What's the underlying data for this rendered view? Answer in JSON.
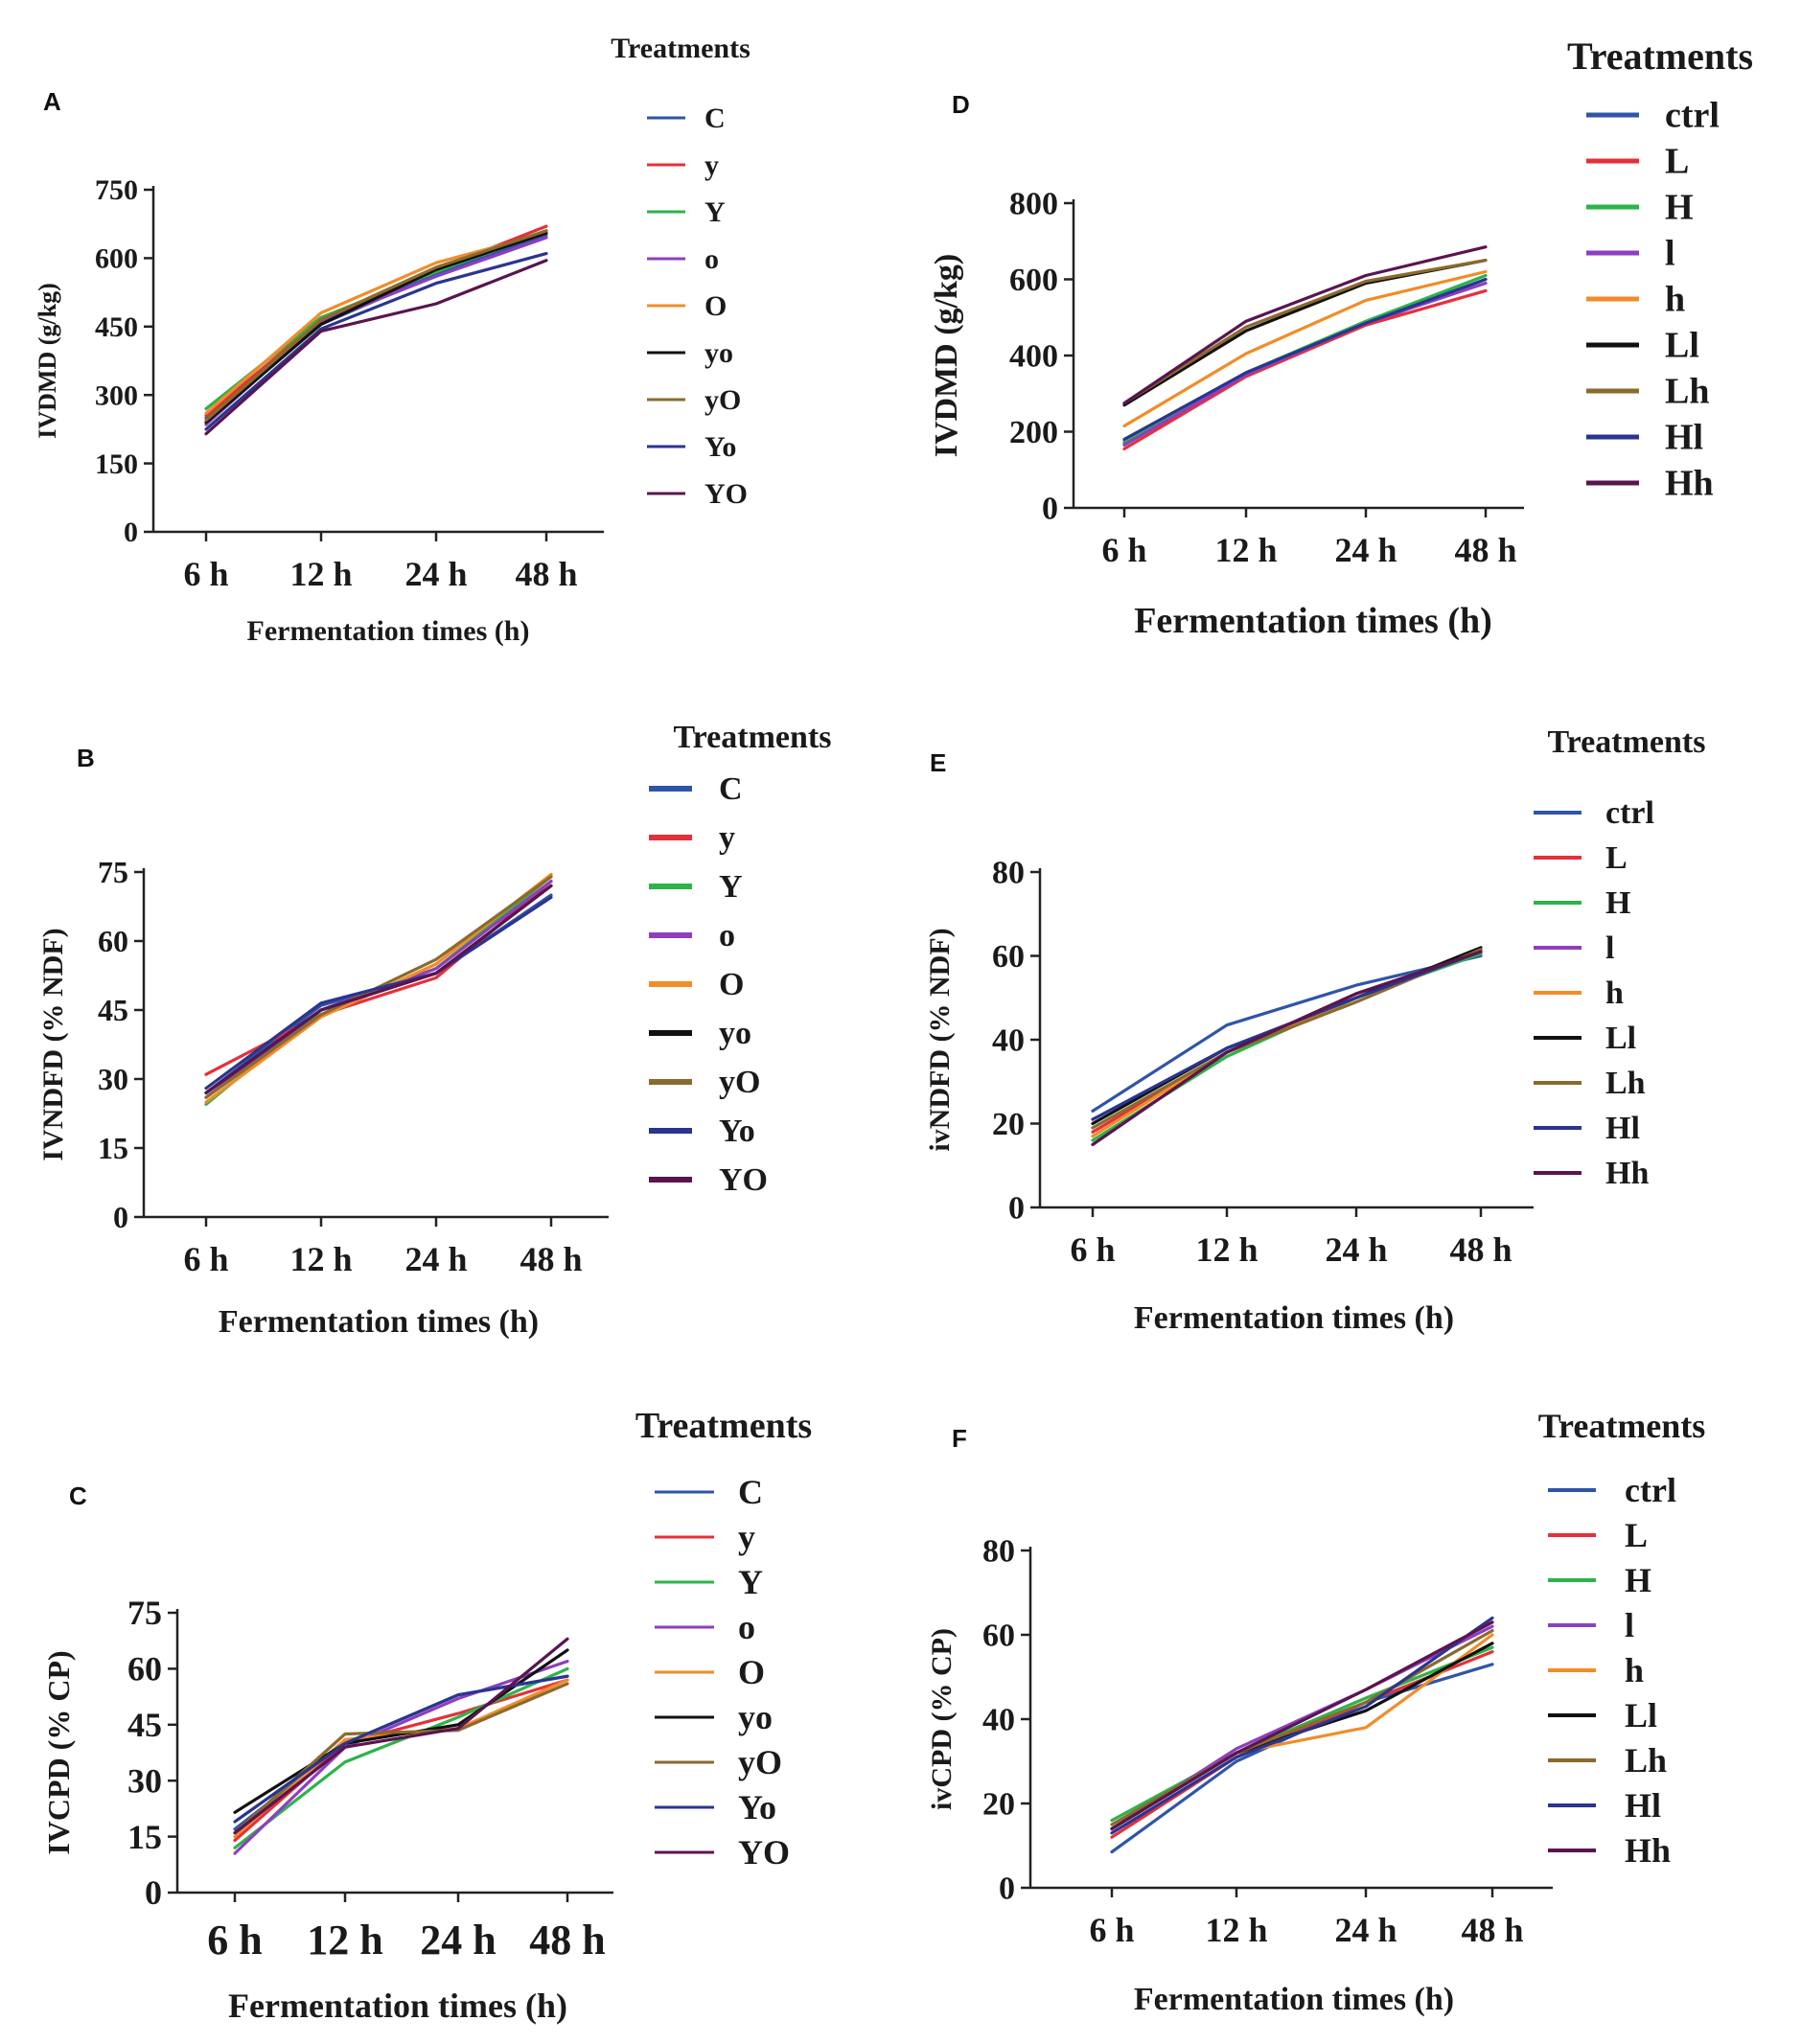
{
  "figure": {
    "colors": [
      "#2f55a8",
      "#e5303a",
      "#2db34a",
      "#8e3fbf",
      "#f28c28",
      "#111111",
      "#8a6a2e",
      "#2a3590",
      "#5a1450"
    ]
  },
  "chart_data": [
    {
      "id": "A",
      "panel_label": "A",
      "type": "line",
      "categories": [
        "6 h",
        "12 h",
        "24 h",
        "48 h"
      ],
      "ylabel": "IVDMD (g/kg)",
      "xlabel": "Fermentation times (h)",
      "ylim": [
        0,
        750
      ],
      "yticks": [
        "0",
        "150",
        "300",
        "450",
        "600",
        "750"
      ],
      "legend_title": "Treatments",
      "series": [
        {
          "name": "C",
          "values": [
            250,
            455,
            565,
            650
          ]
        },
        {
          "name": "y",
          "values": [
            255,
            465,
            575,
            670
          ]
        },
        {
          "name": "Y",
          "values": [
            270,
            470,
            570,
            660
          ]
        },
        {
          "name": "o",
          "values": [
            235,
            460,
            560,
            645
          ]
        },
        {
          "name": "O",
          "values": [
            260,
            480,
            590,
            655
          ]
        },
        {
          "name": "yo",
          "values": [
            240,
            455,
            575,
            655
          ]
        },
        {
          "name": "yO",
          "values": [
            245,
            465,
            580,
            660
          ]
        },
        {
          "name": "Yo",
          "values": [
            225,
            445,
            545,
            610
          ]
        },
        {
          "name": "YO",
          "values": [
            215,
            440,
            500,
            595
          ]
        }
      ]
    },
    {
      "id": "B",
      "panel_label": "B",
      "type": "line",
      "categories": [
        "6 h",
        "12 h",
        "24 h",
        "48 h"
      ],
      "ylabel": "IVNDFD (% NDF)",
      "xlabel": "Fermentation times (h)",
      "ylim": [
        0,
        75
      ],
      "yticks": [
        "0",
        "15",
        "30",
        "45",
        "60",
        "75"
      ],
      "legend_title": "Treatments",
      "series": [
        {
          "name": "C",
          "values": [
            27,
            46,
            53,
            70
          ]
        },
        {
          "name": "y",
          "values": [
            31,
            44,
            52,
            73
          ]
        },
        {
          "name": "Y",
          "values": [
            24.5,
            45,
            54,
            74
          ]
        },
        {
          "name": "o",
          "values": [
            26,
            45,
            54,
            73
          ]
        },
        {
          "name": "O",
          "values": [
            25,
            43.5,
            55,
            74.5
          ]
        },
        {
          "name": "yo",
          "values": [
            27,
            45,
            53,
            72
          ]
        },
        {
          "name": "yO",
          "values": [
            26,
            44,
            56,
            74
          ]
        },
        {
          "name": "Yo",
          "values": [
            28,
            46.5,
            53,
            69.5
          ]
        },
        {
          "name": "YO",
          "values": [
            27,
            45,
            53,
            72
          ]
        }
      ]
    },
    {
      "id": "C",
      "panel_label": "C",
      "type": "line",
      "categories": [
        "6 h",
        "12 h",
        "24 h",
        "48 h"
      ],
      "ylabel": "IVCPD (% CP)",
      "xlabel": "Fermentation times (h)",
      "ylim": [
        0,
        75
      ],
      "yticks": [
        "0",
        "15",
        "30",
        "45",
        "60",
        "75"
      ],
      "legend_title": "Treatments",
      "series": [
        {
          "name": "C",
          "values": [
            17,
            40,
            53,
            58
          ]
        },
        {
          "name": "y",
          "values": [
            14,
            40,
            48,
            57
          ]
        },
        {
          "name": "Y",
          "values": [
            12,
            35,
            47,
            60
          ]
        },
        {
          "name": "o",
          "values": [
            10.5,
            39,
            52,
            62
          ]
        },
        {
          "name": "O",
          "values": [
            15,
            41,
            44,
            57
          ]
        },
        {
          "name": "yo",
          "values": [
            21.5,
            40,
            45,
            65
          ]
        },
        {
          "name": "yO",
          "values": [
            16,
            42.5,
            43.5,
            56
          ]
        },
        {
          "name": "Yo",
          "values": [
            19,
            40,
            53,
            58
          ]
        },
        {
          "name": "YO",
          "values": [
            16,
            39,
            44,
            68
          ]
        }
      ]
    },
    {
      "id": "D",
      "panel_label": "D",
      "type": "line",
      "categories": [
        "6 h",
        "12 h",
        "24 h",
        "48 h"
      ],
      "ylabel": "IVDMD (g/kg)",
      "xlabel": "Fermentation times (h)",
      "ylim": [
        0,
        800
      ],
      "yticks": [
        "0",
        "200",
        "400",
        "600",
        "800"
      ],
      "legend_title": "Treatments",
      "series": [
        {
          "name": "ctrl",
          "values": [
            170,
            350,
            480,
            600
          ]
        },
        {
          "name": "L",
          "values": [
            155,
            345,
            480,
            570
          ]
        },
        {
          "name": "H",
          "values": [
            175,
            355,
            490,
            610
          ]
        },
        {
          "name": "l",
          "values": [
            165,
            350,
            485,
            590
          ]
        },
        {
          "name": "h",
          "values": [
            215,
            405,
            545,
            620
          ]
        },
        {
          "name": "Ll",
          "values": [
            270,
            465,
            590,
            650
          ]
        },
        {
          "name": "Lh",
          "values": [
            275,
            475,
            595,
            650
          ]
        },
        {
          "name": "Hl",
          "values": [
            180,
            355,
            485,
            600
          ]
        },
        {
          "name": "Hh",
          "values": [
            275,
            490,
            610,
            685
          ]
        }
      ]
    },
    {
      "id": "E",
      "panel_label": "E",
      "type": "line",
      "categories": [
        "6 h",
        "12 h",
        "24 h",
        "48 h"
      ],
      "ylabel": "ivNDFD (% NDF)",
      "xlabel": "Fermentation times (h)",
      "ylim": [
        0,
        80
      ],
      "yticks": [
        "0",
        "20",
        "40",
        "60",
        "80"
      ],
      "legend_title": "Treatments",
      "series": [
        {
          "name": "ctrl",
          "values": [
            23,
            43.5,
            53,
            60
          ]
        },
        {
          "name": "L",
          "values": [
            18,
            37,
            51,
            60.5
          ]
        },
        {
          "name": "H",
          "values": [
            16,
            36,
            50,
            60.5
          ]
        },
        {
          "name": "l",
          "values": [
            15,
            37,
            51,
            61
          ]
        },
        {
          "name": "h",
          "values": [
            17,
            37,
            50,
            61
          ]
        },
        {
          "name": "Ll",
          "values": [
            20,
            38,
            50,
            62
          ]
        },
        {
          "name": "Lh",
          "values": [
            19,
            37,
            49,
            61.5
          ]
        },
        {
          "name": "Hl",
          "values": [
            21,
            38,
            50,
            61
          ]
        },
        {
          "name": "Hh",
          "values": [
            15,
            37,
            51,
            61
          ]
        }
      ]
    },
    {
      "id": "F",
      "panel_label": "F",
      "type": "line",
      "categories": [
        "6 h",
        "12 h",
        "24 h",
        "48 h"
      ],
      "ylabel": "ivCPD (% CP)",
      "xlabel": "Fermentation times (h)",
      "ylim": [
        0,
        80
      ],
      "yticks": [
        "0",
        "20",
        "40",
        "60",
        "80"
      ],
      "legend_title": "Treatments",
      "series": [
        {
          "name": "ctrl",
          "values": [
            8.5,
            30,
            44,
            53
          ]
        },
        {
          "name": "L",
          "values": [
            12,
            31,
            44,
            56
          ]
        },
        {
          "name": "H",
          "values": [
            16,
            32,
            45,
            57
          ]
        },
        {
          "name": "l",
          "values": [
            14,
            33,
            47,
            62
          ]
        },
        {
          "name": "h",
          "values": [
            14,
            32,
            38,
            60
          ]
        },
        {
          "name": "Ll",
          "values": [
            14,
            32,
            42,
            58
          ]
        },
        {
          "name": "Lh",
          "values": [
            15,
            32,
            44,
            61
          ]
        },
        {
          "name": "Hl",
          "values": [
            13,
            31,
            43,
            64
          ]
        },
        {
          "name": "Hh",
          "values": [
            14,
            32,
            47,
            63
          ]
        }
      ]
    }
  ]
}
